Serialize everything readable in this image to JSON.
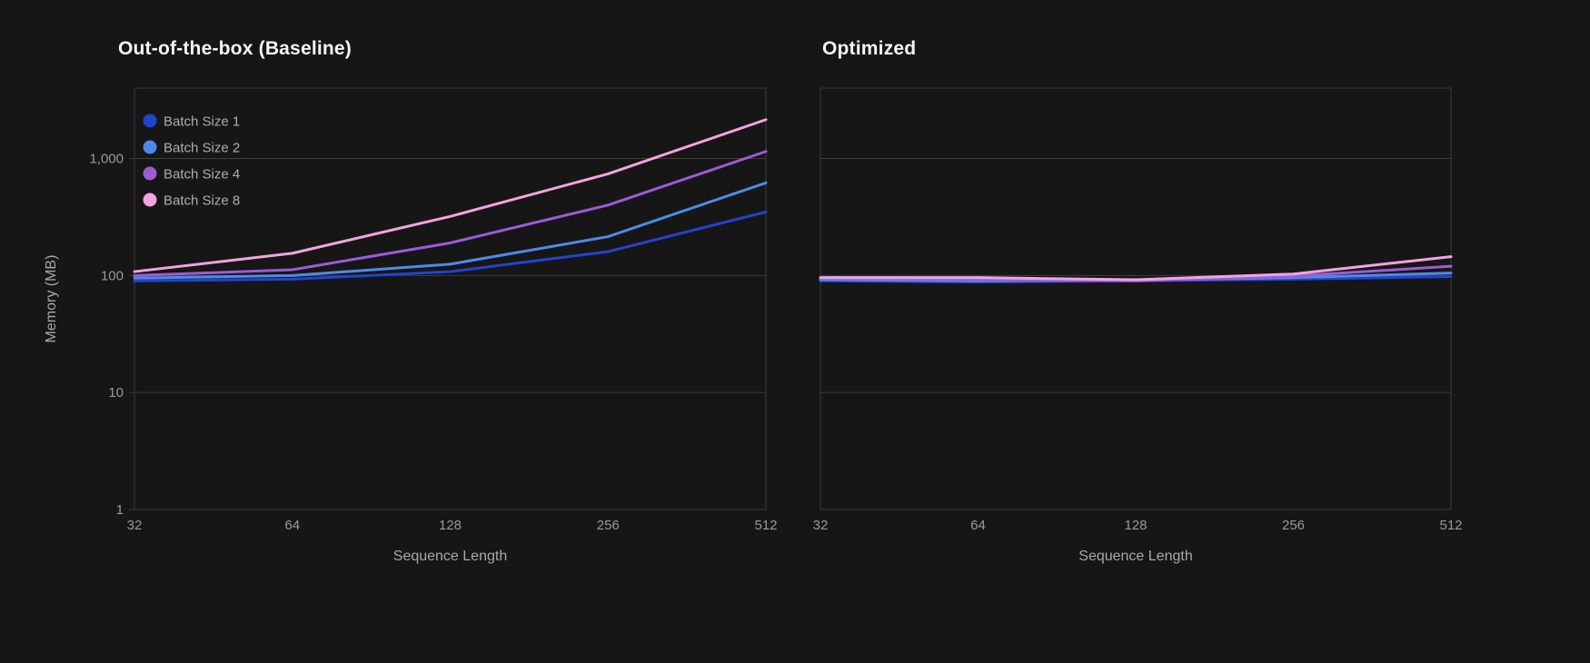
{
  "theme": {
    "background": "#161616",
    "plot_border": "#3a3a3d",
    "gridline": "#3e3e41",
    "tick_text": "#9a9a9a",
    "axis_text": "#a8a8a8",
    "legend_text": "#aeaeae",
    "title_text": "#f5f5f5"
  },
  "chart_data": [
    {
      "type": "line",
      "title": "Out-of-the-box (Baseline)",
      "xlabel": "Sequence Length",
      "ylabel": "Memory (MB)",
      "x": [
        32,
        64,
        128,
        256,
        512
      ],
      "xtick_labels": [
        "32",
        "64",
        "128",
        "256",
        "512"
      ],
      "x_scale": "log2",
      "y_scale": "log10",
      "ylim": [
        1,
        4000
      ],
      "yticks": [
        1,
        10,
        100,
        1000
      ],
      "ytick_labels": [
        "1",
        "10",
        "100",
        "1,000"
      ],
      "grid": "horizontal",
      "legend_position": "top-left-inside",
      "show_y_tick_labels": true,
      "show_legend": true,
      "series": [
        {
          "name": "Batch Size 1",
          "color": "#2343cd",
          "values": [
            90,
            93,
            108,
            160,
            350
          ]
        },
        {
          "name": "Batch Size 2",
          "color": "#4e8ae8",
          "values": [
            95,
            100,
            125,
            215,
            620
          ]
        },
        {
          "name": "Batch Size 4",
          "color": "#9b5cd6",
          "values": [
            100,
            112,
            190,
            400,
            1150
          ]
        },
        {
          "name": "Batch Size 8",
          "color": "#f2a3e2",
          "values": [
            108,
            155,
            320,
            740,
            2150
          ]
        }
      ]
    },
    {
      "type": "line",
      "title": "Optimized",
      "xlabel": "Sequence Length",
      "ylabel": "Memory (MB)",
      "x": [
        32,
        64,
        128,
        256,
        512
      ],
      "xtick_labels": [
        "32",
        "64",
        "128",
        "256",
        "512"
      ],
      "x_scale": "log2",
      "y_scale": "log10",
      "ylim": [
        1,
        4000
      ],
      "yticks": [
        1,
        10,
        100,
        1000
      ],
      "ytick_labels": [
        "1",
        "10",
        "100",
        "1,000"
      ],
      "grid": "horizontal",
      "legend_position": "none",
      "show_y_tick_labels": false,
      "show_legend": false,
      "series": [
        {
          "name": "Batch Size 1",
          "color": "#2343cd",
          "values": [
            90,
            88,
            90,
            93,
            98
          ]
        },
        {
          "name": "Batch Size 2",
          "color": "#4e8ae8",
          "values": [
            92,
            90,
            91,
            96,
            105
          ]
        },
        {
          "name": "Batch Size 4",
          "color": "#9b5cd6",
          "values": [
            95,
            93,
            90,
            99,
            120
          ]
        },
        {
          "name": "Batch Size 8",
          "color": "#f2a3e2",
          "values": [
            96,
            96,
            92,
            103,
            145
          ]
        }
      ]
    }
  ]
}
